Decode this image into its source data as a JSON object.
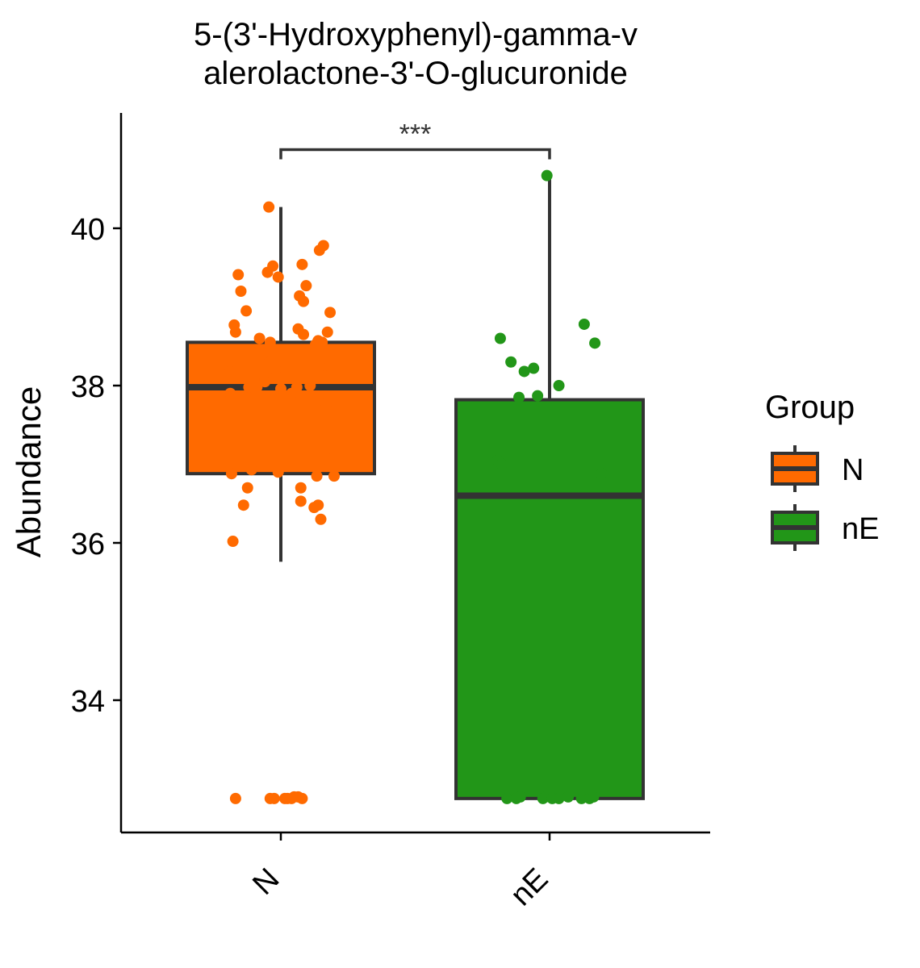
{
  "chart_data": {
    "type": "box",
    "title_lines": [
      "5-(3'-Hydroxyphenyl)-gamma-v",
      "alerolactone-3'-O-glucuronide"
    ],
    "ylabel": "Abundance",
    "xlabel": "",
    "ylim": [
      32.4,
      41.5
    ],
    "yticks": [
      34,
      36,
      38,
      40
    ],
    "categories": [
      "N",
      "nE"
    ],
    "legend": {
      "title": "Group",
      "position": "right",
      "entries": [
        "N",
        "nE"
      ]
    },
    "significance": {
      "label": "***",
      "between": [
        "N",
        "nE"
      ],
      "y": 41.0
    },
    "series": [
      {
        "name": "N",
        "color": "#FF6A00",
        "box": {
          "q1": 36.88,
          "median": 37.98,
          "q3": 38.55,
          "whisker_low": 35.76,
          "whisker_high": 40.27
        },
        "points": [
          [
            -0.38,
            38.18
          ],
          [
            -0.37,
            36.88
          ],
          [
            -0.38,
            37.9
          ],
          [
            -0.36,
            36.02
          ],
          [
            -0.35,
            38.77
          ],
          [
            -0.35,
            37.37
          ],
          [
            -0.34,
            38.68
          ],
          [
            -0.33,
            37.77
          ],
          [
            -0.32,
            39.41
          ],
          [
            -0.3,
            39.2
          ],
          [
            -0.28,
            36.48
          ],
          [
            -0.26,
            38.95
          ],
          [
            -0.25,
            36.7
          ],
          [
            -0.24,
            37.98
          ],
          [
            -0.22,
            36.93
          ],
          [
            -0.2,
            38.1
          ],
          [
            -0.18,
            37.98
          ],
          [
            -0.16,
            38.6
          ],
          [
            -0.14,
            38.4
          ],
          [
            -0.12,
            38.05
          ],
          [
            -0.1,
            39.44
          ],
          [
            -0.09,
            40.27
          ],
          [
            -0.08,
            38.55
          ],
          [
            -0.06,
            39.52
          ],
          [
            -0.04,
            38.2
          ],
          [
            -0.02,
            39.38
          ],
          [
            -0.02,
            36.9
          ],
          [
            0.0,
            37.96
          ],
          [
            0.02,
            38.3
          ],
          [
            0.04,
            38.1
          ],
          [
            0.08,
            37.9
          ],
          [
            0.12,
            37.98
          ],
          [
            0.13,
            38.72
          ],
          [
            0.14,
            39.14
          ],
          [
            0.15,
            36.7
          ],
          [
            0.15,
            36.53
          ],
          [
            0.16,
            39.54
          ],
          [
            0.17,
            38.65
          ],
          [
            0.17,
            39.07
          ],
          [
            0.19,
            39.27
          ],
          [
            0.22,
            38.0
          ],
          [
            0.25,
            36.45
          ],
          [
            0.26,
            38.52
          ],
          [
            0.27,
            36.85
          ],
          [
            0.28,
            38.57
          ],
          [
            0.28,
            36.48
          ],
          [
            0.29,
            39.72
          ],
          [
            0.29,
            38.3
          ],
          [
            0.3,
            36.3
          ],
          [
            0.31,
            38.55
          ],
          [
            0.32,
            39.78
          ],
          [
            0.33,
            38.12
          ],
          [
            0.34,
            37.77
          ],
          [
            0.35,
            38.68
          ],
          [
            0.36,
            37.05
          ],
          [
            0.37,
            38.93
          ],
          [
            0.39,
            37.07
          ],
          [
            0.4,
            36.85
          ],
          [
            -0.34,
            32.75
          ],
          [
            -0.08,
            32.75
          ],
          [
            -0.05,
            32.75
          ],
          [
            0.03,
            32.75
          ],
          [
            0.05,
            32.75
          ],
          [
            0.08,
            32.75
          ],
          [
            0.1,
            32.77
          ],
          [
            0.13,
            32.77
          ],
          [
            0.16,
            32.75
          ]
        ]
      },
      {
        "name": "nE",
        "color": "#229618",
        "box": {
          "q1": 32.75,
          "median": 36.6,
          "q3": 37.82,
          "whisker_low": 32.75,
          "whisker_high": 40.67
        },
        "points": [
          [
            -0.39,
            37.05
          ],
          [
            -0.36,
            37.0
          ],
          [
            -0.37,
            38.6
          ],
          [
            -0.29,
            38.3
          ],
          [
            -0.23,
            37.85
          ],
          [
            -0.19,
            38.18
          ],
          [
            -0.12,
            38.22
          ],
          [
            -0.09,
            37.87
          ],
          [
            -0.02,
            40.67
          ],
          [
            0.07,
            38.0
          ],
          [
            0.26,
            38.78
          ],
          [
            0.34,
            38.54
          ],
          [
            0.39,
            36.88
          ],
          [
            -0.32,
            32.75
          ],
          [
            -0.25,
            32.75
          ],
          [
            -0.22,
            32.77
          ],
          [
            -0.05,
            32.75
          ],
          [
            -0.03,
            32.77
          ],
          [
            0.02,
            32.75
          ],
          [
            0.07,
            32.75
          ],
          [
            0.14,
            32.77
          ],
          [
            0.24,
            32.75
          ],
          [
            0.3,
            32.75
          ],
          [
            0.33,
            32.77
          ]
        ]
      }
    ]
  }
}
